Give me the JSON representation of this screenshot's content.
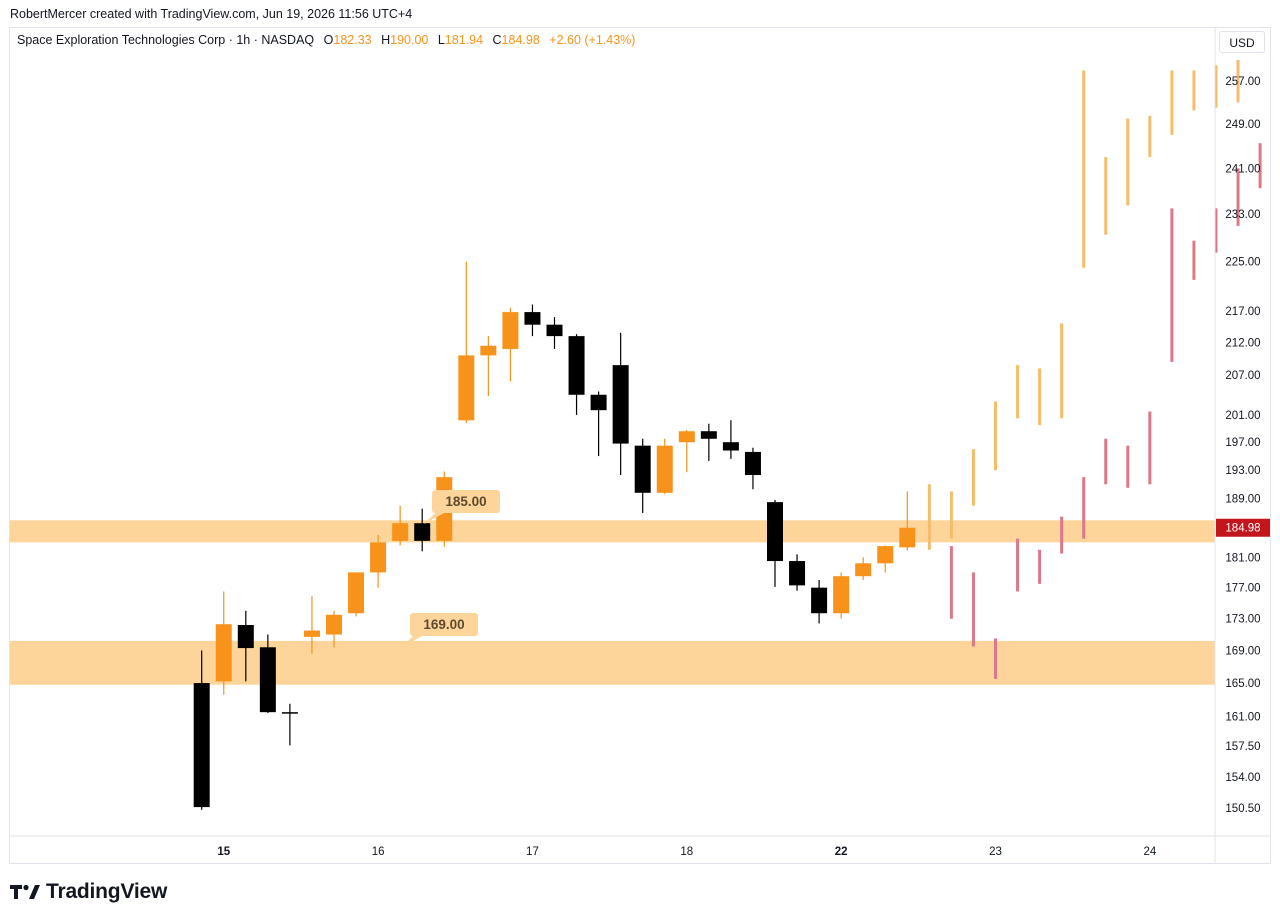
{
  "caption": "RobertMercer created with TradingView.com, Jun 19, 2026 11:56 UTC+4",
  "legend": {
    "symbol": "Space Exploration Technologies Corp · 1h · NASDAQ",
    "o_label": "O",
    "o_value": "182.33",
    "h_label": "H",
    "h_value": "190.00",
    "l_label": "L",
    "l_value": "181.94",
    "c_label": "C",
    "c_value": "184.98",
    "change": "+2.60 (+1.43%)"
  },
  "currency": "USD",
  "brand": "TradingView",
  "colors": {
    "up": "#f7931a",
    "down": "#000000",
    "zone": "#fdd59b",
    "proj_up": "#f5bd6a",
    "proj_down": "#dc7888",
    "price_tag": "#c3161c"
  },
  "chart_data": {
    "type": "candlestick",
    "y_axis_scale": "log",
    "y_ticks": [
      150.5,
      154,
      157.5,
      161,
      165,
      169,
      173,
      177,
      181,
      184.98,
      189,
      193,
      197,
      201,
      207,
      212,
      217,
      225,
      233,
      241,
      249,
      257
    ],
    "y_tick_labels": [
      "150.50",
      "154.00",
      "157.50",
      "161.00",
      "165.00",
      "169.00",
      "173.00",
      "177.00",
      "181.00",
      "184.98",
      "189.00",
      "193.00",
      "197.00",
      "201.00",
      "207.00",
      "212.00",
      "217.00",
      "225.00",
      "233.00",
      "241.00",
      "249.00",
      "257.00"
    ],
    "x_ticks": [
      {
        "label": "15",
        "index": 5,
        "bold": true
      },
      {
        "label": "16",
        "index": 12,
        "bold": false
      },
      {
        "label": "17",
        "index": 19,
        "bold": false
      },
      {
        "label": "18",
        "index": 26,
        "bold": false
      },
      {
        "label": "22",
        "index": 33,
        "bold": true
      },
      {
        "label": "23",
        "index": 40,
        "bold": false
      },
      {
        "label": "24",
        "index": 47,
        "bold": false
      }
    ],
    "ohlc": [
      {
        "i": 4,
        "o": 165.0,
        "h": 169.0,
        "l": 150.3,
        "c": 150.6
      },
      {
        "i": 5,
        "o": 165.2,
        "h": 176.5,
        "l": 163.6,
        "c": 172.3
      },
      {
        "i": 6,
        "o": 172.2,
        "h": 174.0,
        "l": 165.2,
        "c": 169.3
      },
      {
        "i": 7,
        "o": 169.4,
        "h": 171.0,
        "l": 161.4,
        "c": 161.5
      },
      {
        "i": 8,
        "o": 161.5,
        "h": 162.5,
        "l": 157.6,
        "c": 161.4
      },
      {
        "i": 9,
        "o": 170.7,
        "h": 175.9,
        "l": 168.6,
        "c": 171.5
      },
      {
        "i": 10,
        "o": 171.0,
        "h": 174.0,
        "l": 169.4,
        "c": 173.5
      },
      {
        "i": 11,
        "o": 173.7,
        "h": 179.0,
        "l": 173.3,
        "c": 179.0
      },
      {
        "i": 12,
        "o": 179.0,
        "h": 184.0,
        "l": 177.0,
        "c": 183.0
      },
      {
        "i": 13,
        "o": 183.2,
        "h": 188.0,
        "l": 182.6,
        "c": 185.6
      },
      {
        "i": 14,
        "o": 185.6,
        "h": 187.6,
        "l": 181.8,
        "c": 183.2
      },
      {
        "i": 15,
        "o": 183.2,
        "h": 192.8,
        "l": 182.4,
        "c": 192.0
      },
      {
        "i": 16,
        "o": 200.2,
        "h": 225.0,
        "l": 199.8,
        "c": 210.0
      },
      {
        "i": 17,
        "o": 210.0,
        "h": 213.0,
        "l": 203.8,
        "c": 211.5
      },
      {
        "i": 18,
        "o": 211.0,
        "h": 217.5,
        "l": 206.0,
        "c": 216.8
      },
      {
        "i": 19,
        "o": 216.8,
        "h": 218.0,
        "l": 213.0,
        "c": 214.8
      },
      {
        "i": 20,
        "o": 214.8,
        "h": 216.0,
        "l": 211.0,
        "c": 213.0
      },
      {
        "i": 21,
        "o": 213.0,
        "h": 213.3,
        "l": 201.0,
        "c": 204.0
      },
      {
        "i": 22,
        "o": 204.0,
        "h": 204.5,
        "l": 195.0,
        "c": 201.7
      },
      {
        "i": 23,
        "o": 208.5,
        "h": 213.5,
        "l": 192.3,
        "c": 196.8
      },
      {
        "i": 24,
        "o": 196.5,
        "h": 197.5,
        "l": 187.0,
        "c": 189.8
      },
      {
        "i": 25,
        "o": 189.8,
        "h": 197.5,
        "l": 189.6,
        "c": 196.5
      },
      {
        "i": 26,
        "o": 197.0,
        "h": 198.8,
        "l": 192.7,
        "c": 198.6
      },
      {
        "i": 27,
        "o": 198.6,
        "h": 199.7,
        "l": 194.3,
        "c": 197.5
      },
      {
        "i": 28,
        "o": 197.0,
        "h": 200.2,
        "l": 194.6,
        "c": 195.8
      },
      {
        "i": 29,
        "o": 195.6,
        "h": 196.2,
        "l": 190.3,
        "c": 192.3
      },
      {
        "i": 30,
        "o": 188.5,
        "h": 188.8,
        "l": 177.1,
        "c": 180.5
      },
      {
        "i": 31,
        "o": 180.5,
        "h": 181.4,
        "l": 176.6,
        "c": 177.3
      },
      {
        "i": 32,
        "o": 177.0,
        "h": 178.0,
        "l": 172.4,
        "c": 173.7
      },
      {
        "i": 33,
        "o": 173.7,
        "h": 179.0,
        "l": 173.0,
        "c": 178.5
      },
      {
        "i": 34,
        "o": 178.5,
        "h": 181.0,
        "l": 178.0,
        "c": 180.2
      },
      {
        "i": 35,
        "o": 180.2,
        "h": 182.6,
        "l": 179.0,
        "c": 182.5
      },
      {
        "i": 36,
        "o": 182.33,
        "h": 190.0,
        "l": 181.94,
        "c": 184.98
      }
    ],
    "projection_up": [
      {
        "i": 37,
        "lo": 182.0,
        "hi": 191.0
      },
      {
        "i": 38,
        "lo": 183.5,
        "hi": 190.0
      },
      {
        "i": 39,
        "lo": 188.0,
        "hi": 196.0
      },
      {
        "i": 40,
        "lo": 193.0,
        "hi": 203.0
      },
      {
        "i": 41,
        "lo": 200.5,
        "hi": 208.5
      },
      {
        "i": 42,
        "lo": 199.5,
        "hi": 208.0
      },
      {
        "i": 43,
        "lo": 200.5,
        "hi": 215.0
      },
      {
        "i": 44,
        "lo": 224.0,
        "hi": 259.0
      },
      {
        "i": 45,
        "lo": 229.5,
        "hi": 243.0
      },
      {
        "i": 46,
        "lo": 234.5,
        "hi": 250.0
      },
      {
        "i": 47,
        "lo": 243.0,
        "hi": 250.5
      },
      {
        "i": 48,
        "lo": 247.0,
        "hi": 259.0
      },
      {
        "i": 49,
        "lo": 251.5,
        "hi": 259.0
      },
      {
        "i": 50,
        "lo": 252.0,
        "hi": 260.0
      },
      {
        "i": 51,
        "lo": 253.0,
        "hi": 261.0
      }
    ],
    "projection_down": [
      {
        "i": 38,
        "lo": 173.0,
        "hi": 182.5
      },
      {
        "i": 39,
        "lo": 169.5,
        "hi": 179.0
      },
      {
        "i": 40,
        "lo": 165.5,
        "hi": 170.5
      },
      {
        "i": 41,
        "lo": 176.5,
        "hi": 183.5
      },
      {
        "i": 42,
        "lo": 177.5,
        "hi": 182.0
      },
      {
        "i": 43,
        "lo": 181.5,
        "hi": 186.5
      },
      {
        "i": 44,
        "lo": 183.5,
        "hi": 192.0
      },
      {
        "i": 45,
        "lo": 191.0,
        "hi": 197.5
      },
      {
        "i": 46,
        "lo": 190.5,
        "hi": 196.5
      },
      {
        "i": 47,
        "lo": 191.0,
        "hi": 201.5
      },
      {
        "i": 48,
        "lo": 209.0,
        "hi": 234.0
      },
      {
        "i": 49,
        "lo": 222.0,
        "hi": 228.5
      },
      {
        "i": 50,
        "lo": 226.5,
        "hi": 234.0
      },
      {
        "i": 51,
        "lo": 231.0,
        "hi": 241.0
      },
      {
        "i": 52,
        "lo": 237.5,
        "hi": 245.5
      },
      {
        "i": 53,
        "lo": 237.0,
        "hi": 245.0
      }
    ],
    "zones": [
      {
        "label": "185.00",
        "low": 183.0,
        "high": 186.0
      },
      {
        "label": "169.00",
        "low": 164.8,
        "high": 170.2
      }
    ],
    "last_price_label": "184.98",
    "last_price": 184.98
  }
}
